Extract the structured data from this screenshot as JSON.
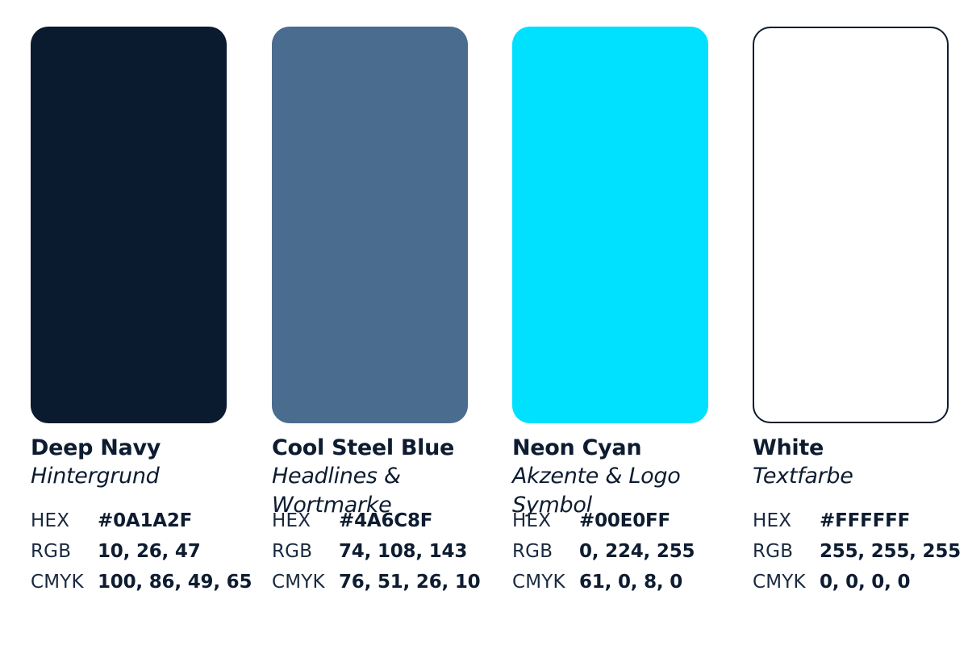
{
  "colors": [
    {
      "name": "Deep Navy",
      "usage": "Hintergrund",
      "hex_label": "HEX",
      "hex": "#0A1A2F",
      "rgb_label": "RGB",
      "rgb": "10, 26, 47",
      "cmyk_label": "CMYK",
      "cmyk": "100, 86, 49, 65",
      "swatch_color": "#0A1A2F"
    },
    {
      "name": "Cool Steel Blue",
      "usage": "Headlines & Wortmarke",
      "hex_label": "HEX",
      "hex": "#4A6C8F",
      "rgb_label": "RGB",
      "rgb": "74, 108, 143",
      "cmyk_label": "CMYK",
      "cmyk": "76, 51, 26, 10",
      "swatch_color": "#4A6C8F"
    },
    {
      "name": "Neon Cyan",
      "usage": "Akzente & Logo Symbol",
      "hex_label": "HEX",
      "hex": "#00E0FF",
      "rgb_label": "RGB",
      "rgb": "0, 224, 255",
      "cmyk_label": "CMYK",
      "cmyk": "61, 0, 8, 0",
      "swatch_color": "#00E0FF"
    },
    {
      "name": "White",
      "usage": "Textfarbe",
      "hex_label": "HEX",
      "hex": "#FFFFFF",
      "rgb_label": "RGB",
      "rgb": "255, 255, 255",
      "cmyk_label": "CMYK",
      "cmyk": "0, 0, 0, 0",
      "swatch_color": "#FFFFFF"
    }
  ]
}
